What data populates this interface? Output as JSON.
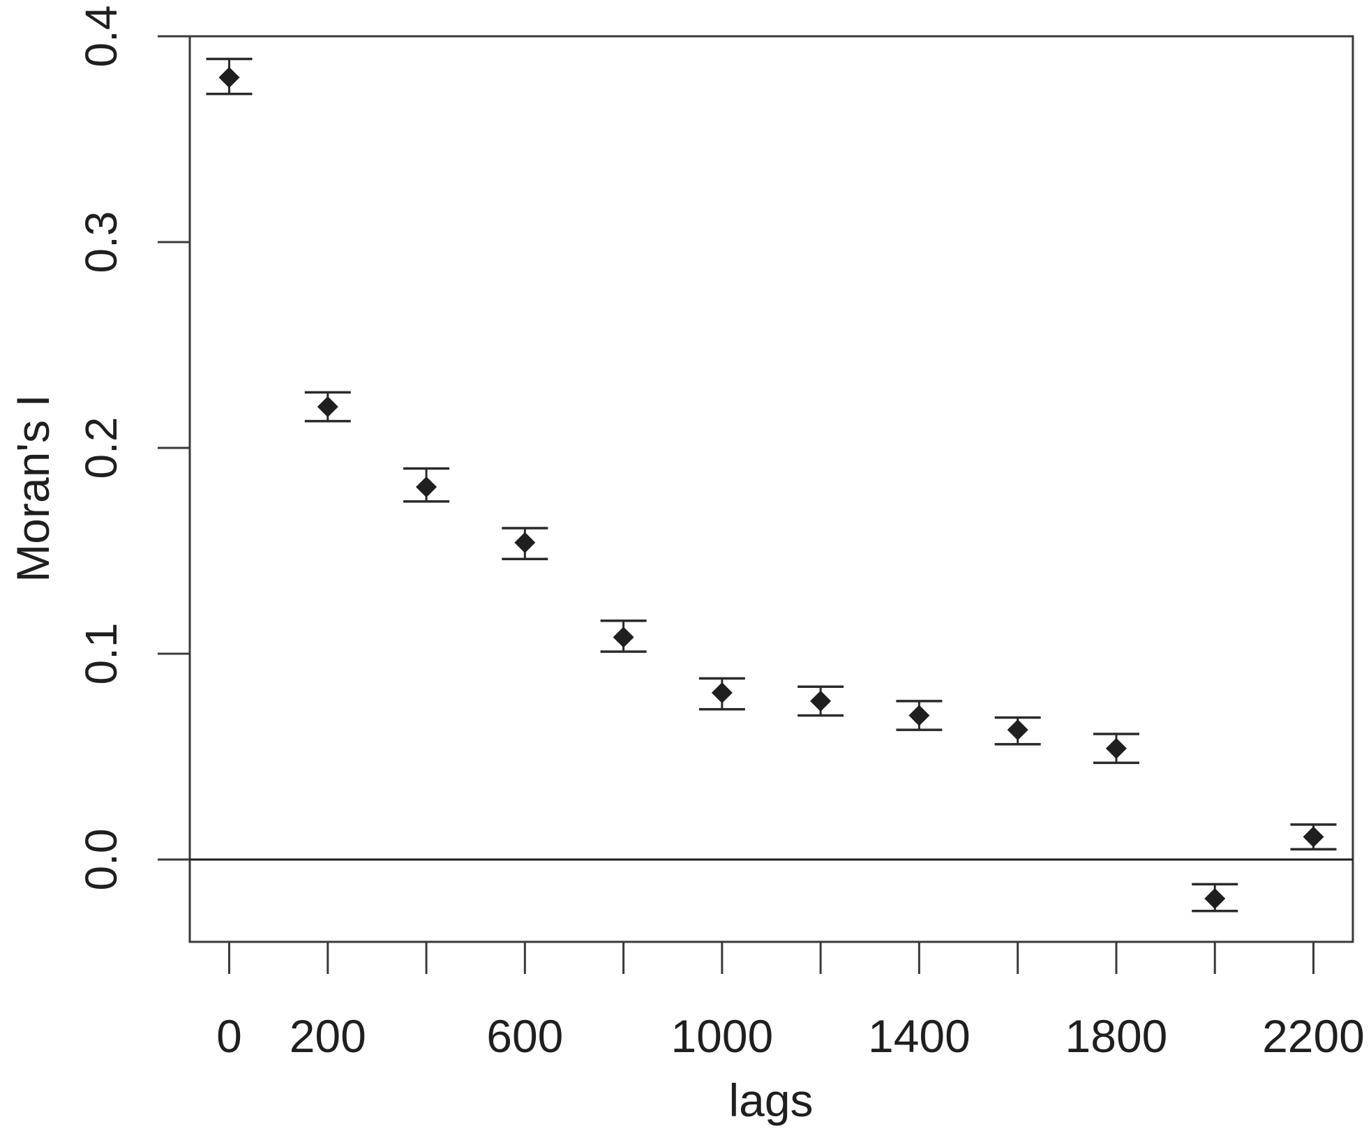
{
  "chart_data": {
    "type": "scatter",
    "title": "",
    "xlabel": "lags",
    "ylabel": "Moran's I",
    "xlim": [
      -80,
      2280
    ],
    "ylim": [
      -0.04,
      0.4
    ],
    "x_ticks": [
      0,
      200,
      400,
      600,
      800,
      1000,
      1200,
      1400,
      1600,
      1800,
      2000,
      2200
    ],
    "x_tick_labels": [
      "0",
      "200",
      "",
      "600",
      "",
      "1000",
      "",
      "1400",
      "",
      "1800",
      "",
      "2200"
    ],
    "y_ticks": [
      0.0,
      0.1,
      0.2,
      0.3,
      0.4
    ],
    "y_tick_labels": [
      "0.0",
      "0.1",
      "0.2",
      "0.3",
      "0.4"
    ],
    "reference_line": 0,
    "grid": false,
    "legend": "none",
    "colors": {
      "points": "#1f1f1f",
      "axes": "#3a3a3a",
      "error_bars": "#2a2a2a"
    },
    "points": [
      {
        "x": 0,
        "y": 0.38,
        "lower": 0.372,
        "upper": 0.389
      },
      {
        "x": 200,
        "y": 0.22,
        "lower": 0.213,
        "upper": 0.227
      },
      {
        "x": 400,
        "y": 0.181,
        "lower": 0.174,
        "upper": 0.19
      },
      {
        "x": 600,
        "y": 0.154,
        "lower": 0.146,
        "upper": 0.161
      },
      {
        "x": 800,
        "y": 0.108,
        "lower": 0.101,
        "upper": 0.116
      },
      {
        "x": 1000,
        "y": 0.081,
        "lower": 0.073,
        "upper": 0.088
      },
      {
        "x": 1200,
        "y": 0.077,
        "lower": 0.07,
        "upper": 0.084
      },
      {
        "x": 1400,
        "y": 0.07,
        "lower": 0.063,
        "upper": 0.077
      },
      {
        "x": 1600,
        "y": 0.063,
        "lower": 0.056,
        "upper": 0.069
      },
      {
        "x": 1800,
        "y": 0.054,
        "lower": 0.047,
        "upper": 0.061
      },
      {
        "x": 2000,
        "y": -0.019,
        "lower": -0.025,
        "upper": -0.012
      },
      {
        "x": 2200,
        "y": 0.011,
        "lower": 0.005,
        "upper": 0.017
      }
    ]
  }
}
